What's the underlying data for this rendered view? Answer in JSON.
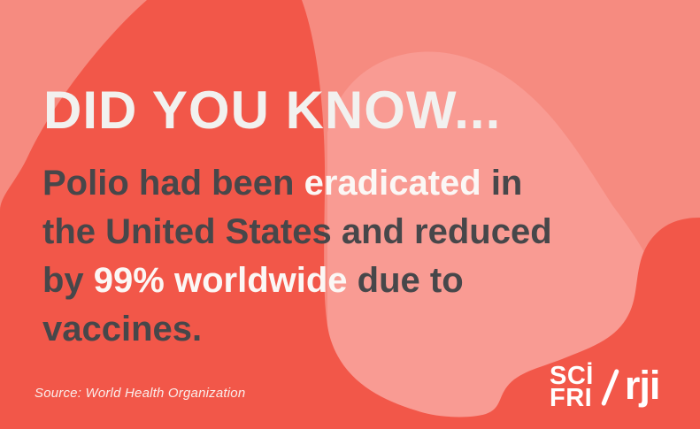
{
  "card": {
    "headline": "DID YOU KNOW...",
    "body_lines": [
      [
        {
          "text": "Polio had been ",
          "style": "dark"
        },
        {
          "text": "eradicated",
          "style": "light"
        },
        {
          "text": " in",
          "style": "dark"
        }
      ],
      [
        {
          "text": "the United States and reduced",
          "style": "dark"
        }
      ],
      [
        {
          "text": "by ",
          "style": "dark"
        },
        {
          "text": "99% worldwide",
          "style": "light"
        },
        {
          "text": " due to",
          "style": "dark"
        }
      ],
      [
        {
          "text": "vaccines.",
          "style": "dark"
        }
      ]
    ],
    "source": "Source: World Health Organization",
    "logo": {
      "line1": "SCİ",
      "line2": "FRI",
      "partner": "rji"
    },
    "colors": {
      "background": "#F68B80",
      "blob_dark": "#F25749",
      "blob_light": "#F99B93",
      "headline": "#F2F1EF",
      "body_dark": "#47474A",
      "body_light": "#FBF7F5",
      "source": "#FAEDEB",
      "logo": "#FFFFFF"
    }
  }
}
